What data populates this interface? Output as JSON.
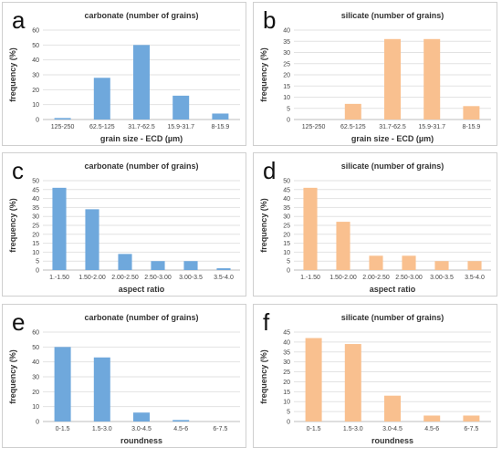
{
  "colors": {
    "carbonate": "#6fa8dc",
    "silicate": "#f9c08f"
  },
  "chart_data": [
    {
      "letter": "a",
      "type": "bar",
      "title": "carbonate (number of grains)",
      "xlabel": "grain size - ECD (µm)",
      "ylabel": "frequency (%)",
      "categories": [
        "125-250",
        "62.5-125",
        "31.7-62.5",
        "15.9-31.7",
        "8-15.9"
      ],
      "values": [
        1,
        28,
        50,
        16,
        4
      ],
      "ylim": [
        0,
        60
      ],
      "yticks": [
        0,
        10,
        20,
        30,
        40,
        50,
        60
      ],
      "color_key": "carbonate"
    },
    {
      "letter": "b",
      "type": "bar",
      "title": "silicate (number of grains)",
      "xlabel": "grain size - ECD (µm)",
      "ylabel": "frequency (%)",
      "categories": [
        "125-250",
        "62.5-125",
        "31.7-62.5",
        "15.9-31.7",
        "8-15.9"
      ],
      "values": [
        0,
        7,
        36,
        36,
        6
      ],
      "ylim": [
        0,
        40
      ],
      "yticks": [
        0,
        5,
        10,
        15,
        20,
        25,
        30,
        35,
        40
      ],
      "color_key": "silicate"
    },
    {
      "letter": "c",
      "type": "bar",
      "title": "carbonate (number of grains)",
      "xlabel": "aspect ratio",
      "ylabel": "frequency (%)",
      "categories": [
        "1.-1.50",
        "1.50-2.00",
        "2.00-2.50",
        "2.50-3.00",
        "3.00-3.5",
        "3.5-4.0"
      ],
      "values": [
        46,
        34,
        9,
        5,
        5,
        1
      ],
      "ylim": [
        0,
        50
      ],
      "yticks": [
        0,
        5,
        10,
        15,
        20,
        25,
        30,
        35,
        40,
        45,
        50
      ],
      "color_key": "carbonate"
    },
    {
      "letter": "d",
      "type": "bar",
      "title": "silicate (number of grains)",
      "xlabel": "aspect ratio",
      "ylabel": "frequency (%)",
      "categories": [
        "1.-1.50",
        "1.50-2.00",
        "2.00-2.50",
        "2.50-3.00",
        "3.00-3.5",
        "3.5-4.0"
      ],
      "values": [
        46,
        27,
        8,
        8,
        5,
        5
      ],
      "ylim": [
        0,
        50
      ],
      "yticks": [
        0,
        5,
        10,
        15,
        20,
        25,
        30,
        35,
        40,
        45,
        50
      ],
      "color_key": "silicate"
    },
    {
      "letter": "e",
      "type": "bar",
      "title": "carbonate (number of grains)",
      "xlabel": "roundness",
      "ylabel": "frequency (%)",
      "categories": [
        "0-1.5",
        "1.5-3.0",
        "3.0-4.5",
        "4.5-6",
        "6-7.5"
      ],
      "values": [
        50,
        43,
        6,
        1,
        0
      ],
      "ylim": [
        0,
        60
      ],
      "yticks": [
        0,
        10,
        20,
        30,
        40,
        50,
        60
      ],
      "color_key": "carbonate"
    },
    {
      "letter": "f",
      "type": "bar",
      "title": "silicate (number of grains)",
      "xlabel": "roundness",
      "ylabel": "frequency (%)",
      "categories": [
        "0-1.5",
        "1.5-3.0",
        "3.0-4.5",
        "4.5-6",
        "6-7.5"
      ],
      "values": [
        42,
        39,
        13,
        3,
        3
      ],
      "ylim": [
        0,
        45
      ],
      "yticks": [
        0,
        5,
        10,
        15,
        20,
        25,
        30,
        35,
        40,
        45
      ],
      "color_key": "silicate"
    }
  ]
}
